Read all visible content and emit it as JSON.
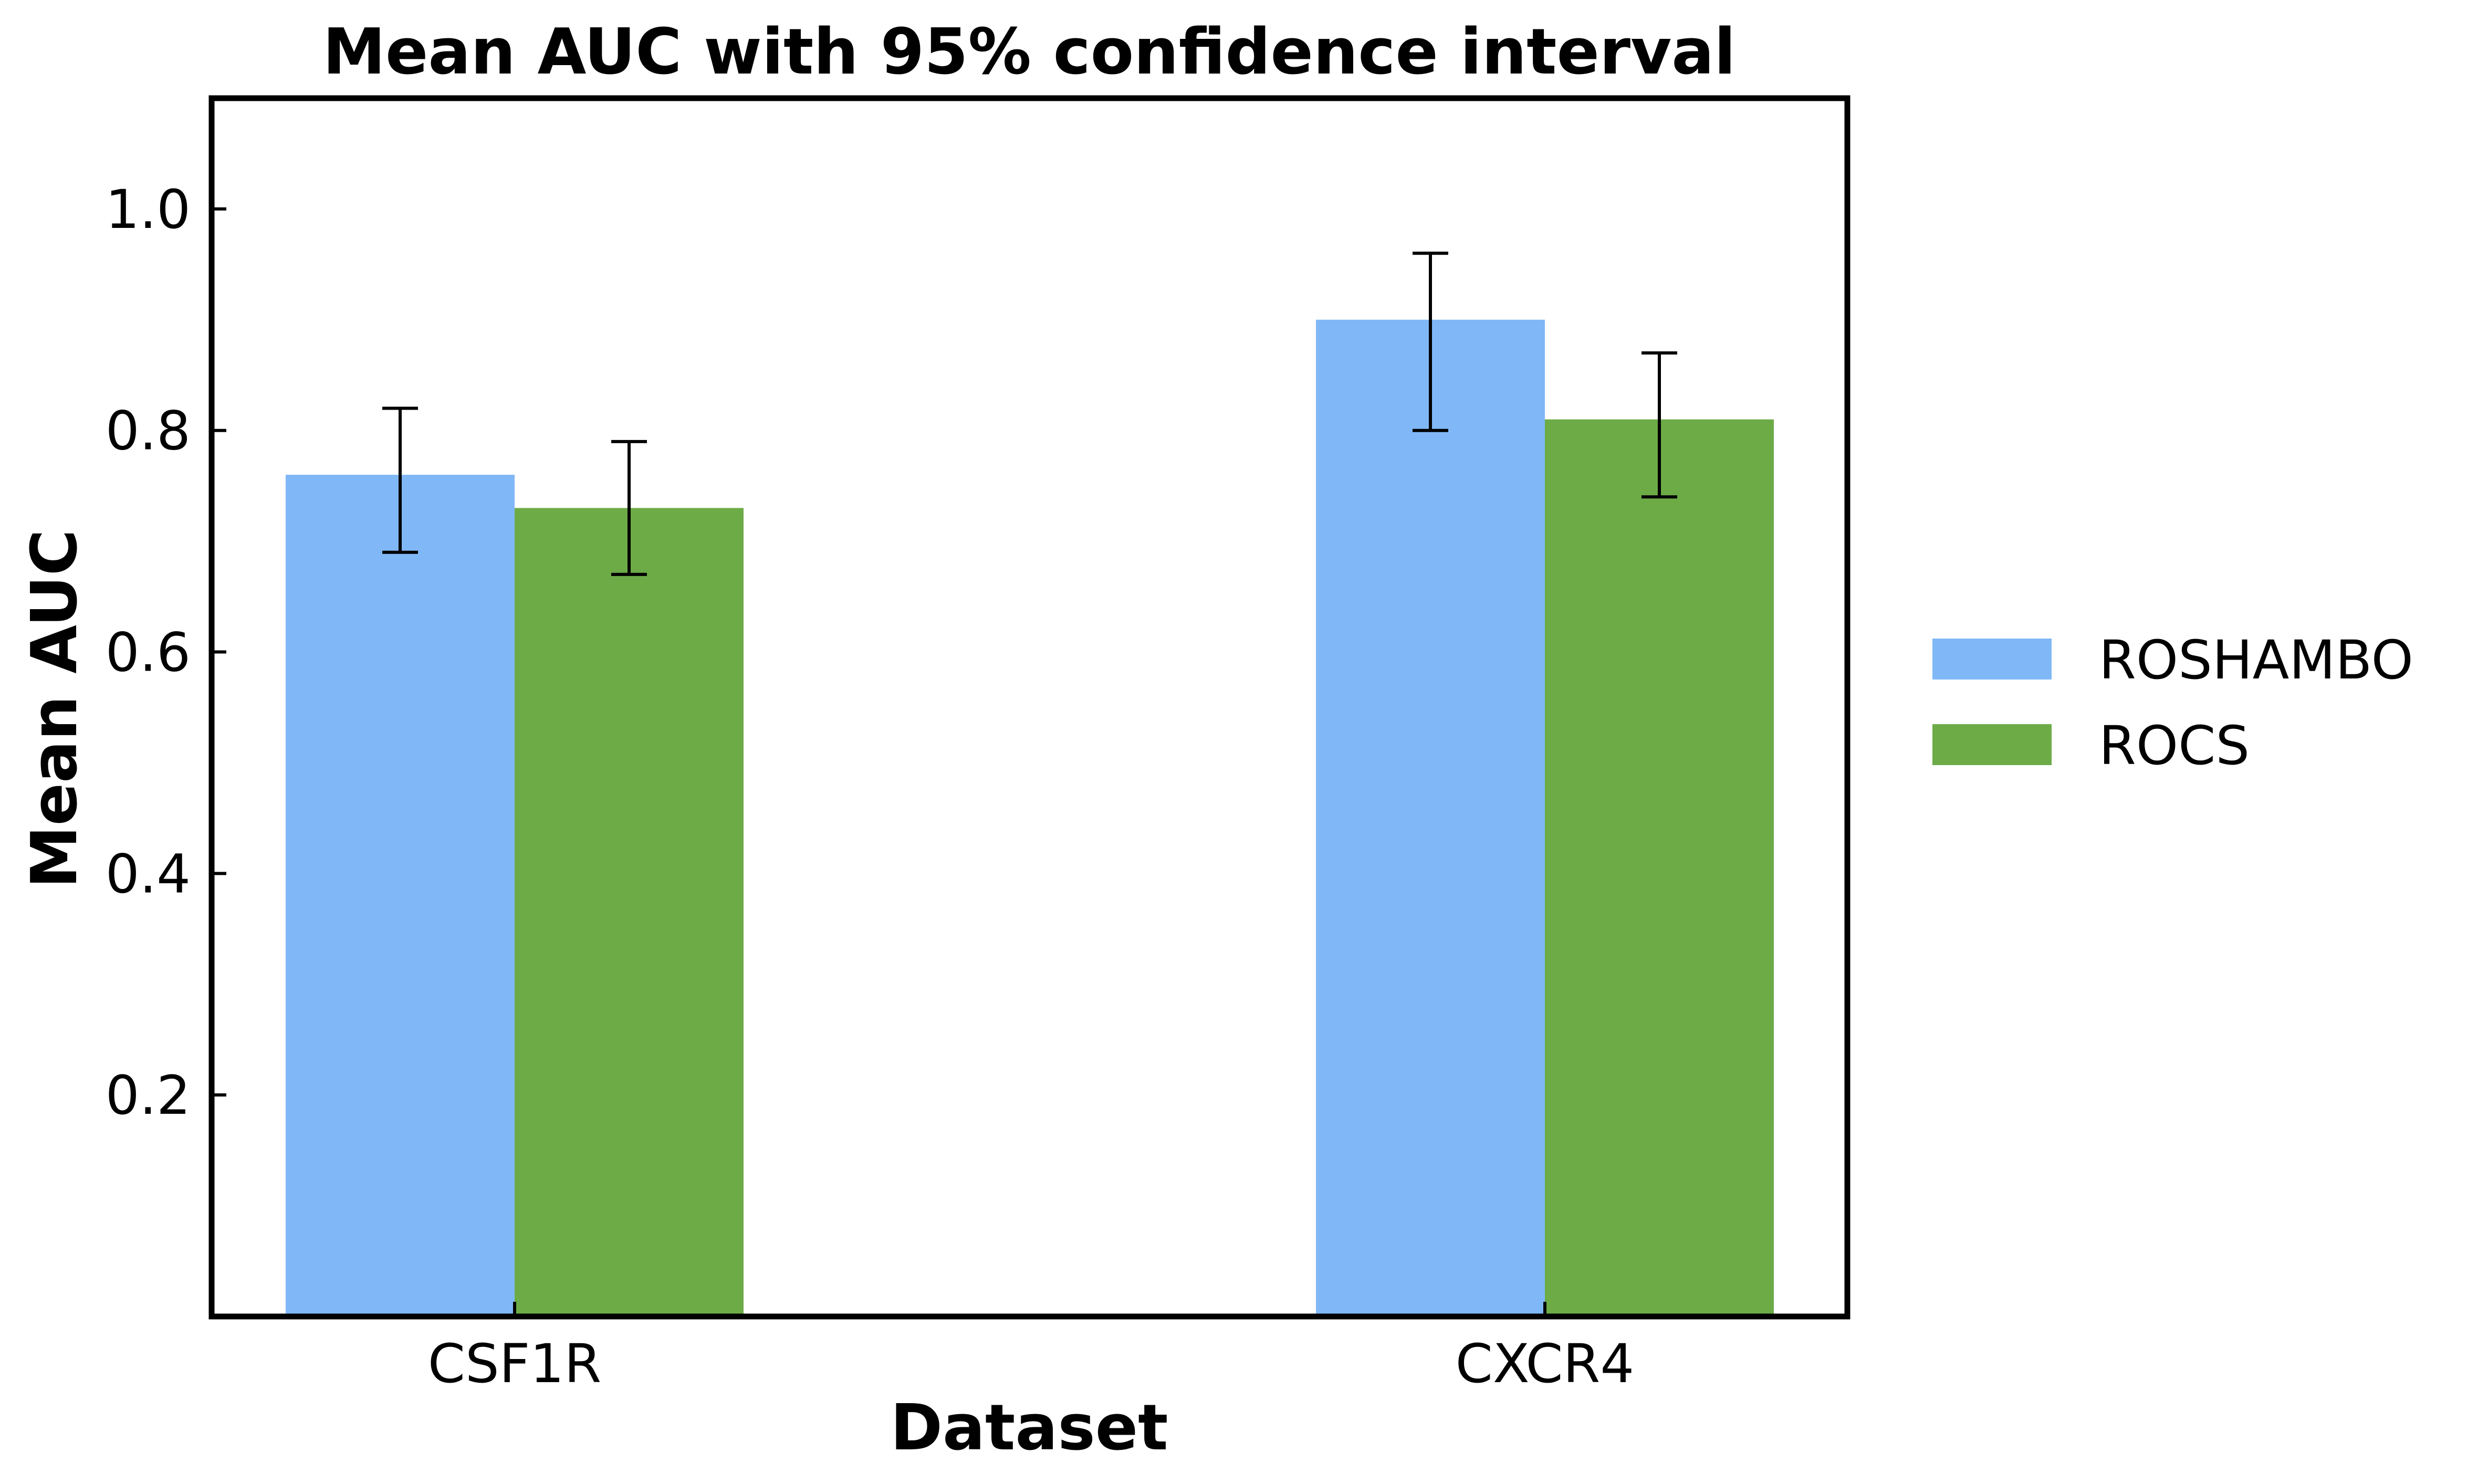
{
  "chart_data": {
    "type": "bar",
    "title": "Mean AUC with 95% confidence interval",
    "xlabel": "Dataset",
    "ylabel": "Mean AUC",
    "categories": [
      "CSF1R",
      "CXCR4"
    ],
    "series": [
      {
        "name": "ROSHAMBO",
        "color": "#80b8f7",
        "values": [
          0.76,
          0.9
        ],
        "ci_low": [
          0.69,
          0.8
        ],
        "ci_high": [
          0.82,
          0.96
        ]
      },
      {
        "name": "ROCS",
        "color": "#6dab47",
        "values": [
          0.73,
          0.81
        ],
        "ci_low": [
          0.67,
          0.74
        ],
        "ci_high": [
          0.79,
          0.87
        ]
      }
    ],
    "ylim": [
      0,
      1.1
    ],
    "yticks": [
      0.2,
      0.4,
      0.6,
      0.8,
      1.0
    ],
    "ytick_labels": [
      "0.2",
      "0.4",
      "0.6",
      "0.8",
      "1.0"
    ],
    "grid": false,
    "legend_position": "right"
  }
}
